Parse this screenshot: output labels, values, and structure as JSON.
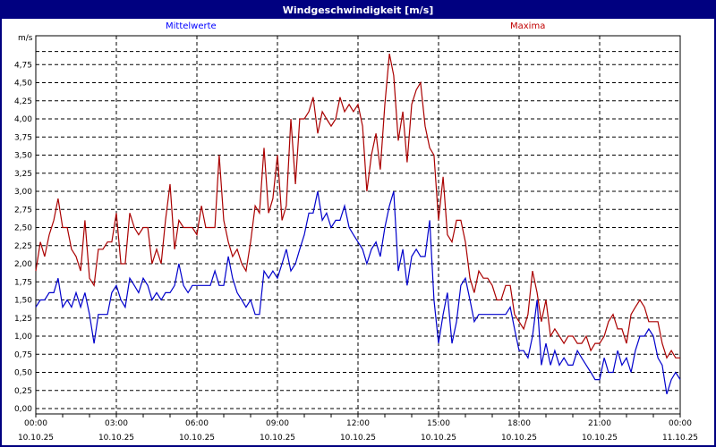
{
  "window": {
    "title": "Windgeschwindigkeit [m/s]"
  },
  "legend": {
    "mean_label": "Mittelwerte",
    "max_label": "Maxima"
  },
  "yaxis": {
    "unit": "m/s"
  },
  "colors": {
    "title_bg": "#000080",
    "mean": "#0000cc",
    "max": "#aa0000",
    "grid": "#000000"
  },
  "chart_data": {
    "type": "line",
    "title": "Windgeschwindigkeit [m/s]",
    "xlabel": "",
    "ylabel": "m/s",
    "ylim": [
      0,
      5.0
    ],
    "yticks": [
      "0,00",
      "0,25",
      "0,50",
      "0,75",
      "1,00",
      "1,25",
      "1,50",
      "1,75",
      "2,00",
      "2,25",
      "2,50",
      "2,75",
      "3,00",
      "3,25",
      "3,50",
      "3,75",
      "4,00",
      "4,25",
      "4,50",
      "4,75"
    ],
    "xticks": [
      {
        "time": "00:00",
        "date": "10.10.25"
      },
      {
        "time": "03:00",
        "date": "10.10.25"
      },
      {
        "time": "06:00",
        "date": "10.10.25"
      },
      {
        "time": "09:00",
        "date": "10.10.25"
      },
      {
        "time": "12:00",
        "date": "10.10.25"
      },
      {
        "time": "15:00",
        "date": "10.10.25"
      },
      {
        "time": "18:00",
        "date": "10.10.25"
      },
      {
        "time": "21:00",
        "date": "10.10.25"
      },
      {
        "time": "00:00",
        "date": "11.10.25"
      }
    ],
    "grid": true,
    "legend_position": "top",
    "x_hours": [
      0,
      0.17,
      0.33,
      0.5,
      0.67,
      0.83,
      1.0,
      1.17,
      1.33,
      1.5,
      1.67,
      1.83,
      2.0,
      2.17,
      2.33,
      2.5,
      2.67,
      2.83,
      3.0,
      3.17,
      3.33,
      3.5,
      3.67,
      3.83,
      4.0,
      4.17,
      4.33,
      4.5,
      4.67,
      4.83,
      5.0,
      5.17,
      5.33,
      5.5,
      5.67,
      5.83,
      6.0,
      6.17,
      6.33,
      6.5,
      6.67,
      6.83,
      7.0,
      7.17,
      7.33,
      7.5,
      7.67,
      7.83,
      8.0,
      8.17,
      8.33,
      8.5,
      8.67,
      8.83,
      9.0,
      9.17,
      9.33,
      9.5,
      9.67,
      9.83,
      10.0,
      10.17,
      10.33,
      10.5,
      10.67,
      10.83,
      11.0,
      11.17,
      11.33,
      11.5,
      11.67,
      11.83,
      12.0,
      12.17,
      12.33,
      12.5,
      12.67,
      12.83,
      13.0,
      13.17,
      13.33,
      13.5,
      13.67,
      13.83,
      14.0,
      14.17,
      14.33,
      14.5,
      14.67,
      14.83,
      15.0,
      15.17,
      15.33,
      15.5,
      15.67,
      15.83,
      16.0,
      16.17,
      16.33,
      16.5,
      16.67,
      16.83,
      17.0,
      17.17,
      17.33,
      17.5,
      17.67,
      17.83,
      18.0,
      18.17,
      18.33,
      18.5,
      18.67,
      18.83,
      19.0,
      19.17,
      19.33,
      19.5,
      19.67,
      19.83,
      20.0,
      20.17,
      20.33,
      20.5,
      20.67,
      20.83,
      21.0,
      21.17,
      21.33,
      21.5,
      21.67,
      21.83,
      22.0,
      22.17,
      22.33,
      22.5,
      22.67,
      22.83,
      23.0,
      23.17,
      23.33,
      23.5,
      23.67,
      23.83,
      24.0
    ],
    "series": [
      {
        "name": "Maxima",
        "color": "#aa0000",
        "values": [
          1.9,
          2.3,
          2.1,
          2.4,
          2.6,
          2.9,
          2.5,
          2.5,
          2.2,
          2.1,
          1.9,
          2.6,
          1.8,
          1.7,
          2.2,
          2.2,
          2.3,
          2.3,
          2.7,
          2.0,
          2.0,
          2.7,
          2.5,
          2.4,
          2.5,
          2.5,
          2.0,
          2.2,
          2.0,
          2.6,
          3.1,
          2.2,
          2.6,
          2.5,
          2.5,
          2.5,
          2.4,
          2.8,
          2.5,
          2.5,
          2.5,
          3.5,
          2.6,
          2.3,
          2.1,
          2.2,
          2.0,
          1.9,
          2.3,
          2.8,
          2.7,
          3.6,
          2.7,
          2.9,
          3.5,
          2.6,
          2.8,
          4.0,
          3.1,
          4.0,
          4.0,
          4.1,
          4.3,
          3.8,
          4.1,
          4.0,
          3.9,
          4.0,
          4.3,
          4.1,
          4.2,
          4.1,
          4.2,
          3.9,
          3.0,
          3.5,
          3.8,
          3.3,
          4.2,
          4.9,
          4.6,
          3.7,
          4.1,
          3.4,
          4.2,
          4.4,
          4.5,
          3.9,
          3.6,
          3.5,
          2.6,
          3.2,
          2.4,
          2.3,
          2.6,
          2.6,
          2.3,
          1.8,
          1.6,
          1.9,
          1.8,
          1.8,
          1.7,
          1.5,
          1.5,
          1.7,
          1.7,
          1.3,
          1.2,
          1.1,
          1.3,
          1.9,
          1.6,
          1.2,
          1.5,
          1.0,
          1.1,
          1.0,
          0.9,
          1.0,
          1.0,
          0.9,
          0.9,
          1.0,
          0.8,
          0.9,
          0.9,
          1.0,
          1.2,
          1.3,
          1.1,
          1.1,
          0.9,
          1.3,
          1.4,
          1.5,
          1.4,
          1.2,
          1.2,
          1.2,
          0.9,
          0.7,
          0.8,
          0.7,
          0.7,
          1.0,
          1.2,
          1.1,
          1.0
        ]
      },
      {
        "name": "Mittelwerte",
        "color": "#0000cc",
        "values": [
          1.4,
          1.5,
          1.5,
          1.6,
          1.6,
          1.8,
          1.4,
          1.5,
          1.4,
          1.6,
          1.4,
          1.6,
          1.3,
          0.9,
          1.3,
          1.3,
          1.3,
          1.6,
          1.7,
          1.5,
          1.4,
          1.8,
          1.7,
          1.6,
          1.8,
          1.7,
          1.5,
          1.6,
          1.5,
          1.6,
          1.6,
          1.7,
          2.0,
          1.7,
          1.6,
          1.7,
          1.7,
          1.7,
          1.7,
          1.7,
          1.9,
          1.7,
          1.7,
          2.1,
          1.8,
          1.6,
          1.5,
          1.4,
          1.5,
          1.3,
          1.3,
          1.9,
          1.8,
          1.9,
          1.8,
          2.0,
          2.2,
          1.9,
          2.0,
          2.2,
          2.4,
          2.7,
          2.7,
          3.0,
          2.6,
          2.7,
          2.5,
          2.6,
          2.6,
          2.8,
          2.5,
          2.4,
          2.3,
          2.2,
          2.0,
          2.2,
          2.3,
          2.1,
          2.5,
          2.8,
          3.0,
          1.9,
          2.2,
          1.7,
          2.1,
          2.2,
          2.1,
          2.1,
          2.6,
          1.5,
          0.9,
          1.3,
          1.6,
          0.9,
          1.2,
          1.7,
          1.8,
          1.5,
          1.2,
          1.3,
          1.3,
          1.3,
          1.3,
          1.3,
          1.3,
          1.3,
          1.4,
          1.1,
          0.8,
          0.8,
          0.7,
          1.0,
          1.5,
          0.6,
          0.9,
          0.6,
          0.8,
          0.6,
          0.7,
          0.6,
          0.6,
          0.8,
          0.7,
          0.6,
          0.5,
          0.4,
          0.4,
          0.7,
          0.5,
          0.5,
          0.8,
          0.6,
          0.7,
          0.5,
          0.8,
          1.0,
          1.0,
          1.1,
          1.0,
          0.7,
          0.6,
          0.2,
          0.4,
          0.5,
          0.4,
          0.7,
          0.8,
          0.7,
          0.6
        ]
      }
    ]
  }
}
